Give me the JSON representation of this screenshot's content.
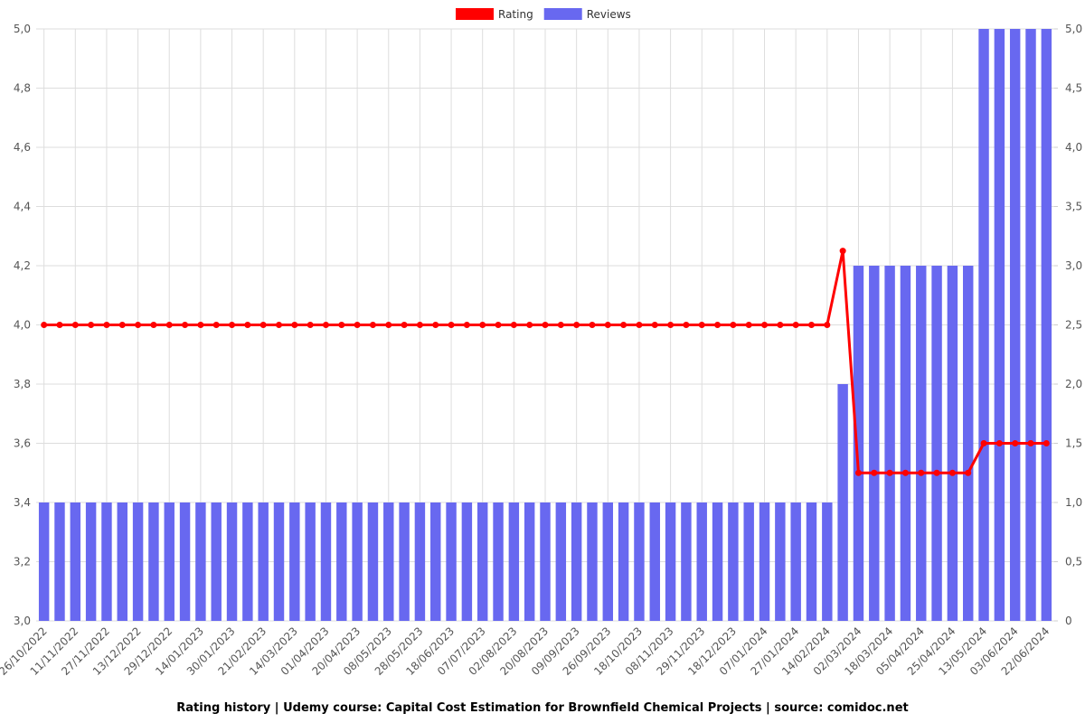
{
  "chart_data": {
    "type": "bar-line",
    "caption": "Rating history | Udemy course: Capital Cost Estimation for Brownfield Chemical Projects | source: comidoc.net",
    "categories": [
      "26/10/2022",
      null,
      "11/11/2022",
      null,
      "27/11/2022",
      null,
      "13/12/2022",
      null,
      "29/12/2022",
      null,
      "14/01/2023",
      null,
      "30/01/2023",
      null,
      "21/02/2023",
      null,
      "14/03/2023",
      null,
      "01/04/2023",
      null,
      "20/04/2023",
      null,
      "08/05/2023",
      null,
      "28/05/2023",
      null,
      "18/06/2023",
      null,
      "07/07/2023",
      null,
      "02/08/2023",
      null,
      "20/08/2023",
      null,
      "09/09/2023",
      null,
      "26/09/2023",
      null,
      "18/10/2023",
      null,
      "08/11/2023",
      null,
      "29/11/2023",
      null,
      "18/12/2023",
      null,
      "07/01/2024",
      null,
      "27/01/2024",
      null,
      "14/02/2024",
      null,
      "02/03/2024",
      null,
      "18/03/2024",
      null,
      "05/04/2024",
      null,
      "25/04/2024",
      null,
      "13/05/2024",
      null,
      "03/06/2024",
      null,
      "22/06/2024"
    ],
    "series": [
      {
        "name": "Rating",
        "type": "line",
        "axis": "y",
        "color": "#ff0000",
        "values": [
          4,
          4,
          4,
          4,
          4,
          4,
          4,
          4,
          4,
          4,
          4,
          4,
          4,
          4,
          4,
          4,
          4,
          4,
          4,
          4,
          4,
          4,
          4,
          4,
          4,
          4,
          4,
          4,
          4,
          4,
          4,
          4,
          4,
          4,
          4,
          4,
          4,
          4,
          4,
          4,
          4,
          4,
          4,
          4,
          4,
          4,
          4,
          4,
          4,
          4,
          4,
          4.25,
          3.5,
          3.5,
          3.5,
          3.5,
          3.5,
          3.5,
          3.5,
          3.5,
          3.6,
          3.6,
          3.6,
          3.6,
          3.6
        ]
      },
      {
        "name": "Reviews",
        "type": "bar",
        "axis": "y2",
        "color": "#6868f0",
        "values": [
          1,
          1,
          1,
          1,
          1,
          1,
          1,
          1,
          1,
          1,
          1,
          1,
          1,
          1,
          1,
          1,
          1,
          1,
          1,
          1,
          1,
          1,
          1,
          1,
          1,
          1,
          1,
          1,
          1,
          1,
          1,
          1,
          1,
          1,
          1,
          1,
          1,
          1,
          1,
          1,
          1,
          1,
          1,
          1,
          1,
          1,
          1,
          1,
          1,
          1,
          1,
          2,
          3,
          3,
          3,
          3,
          3,
          3,
          3,
          3,
          5,
          5,
          5,
          5,
          5
        ]
      }
    ],
    "ylim": [
      3,
      5
    ],
    "yticks": [
      {
        "value": 3,
        "label": "3,0"
      },
      {
        "value": 3.2,
        "label": "3,2"
      },
      {
        "value": 3.4,
        "label": "3,4"
      },
      {
        "value": 3.6,
        "label": "3,6"
      },
      {
        "value": 3.8,
        "label": "3,8"
      },
      {
        "value": 4,
        "label": "4,0"
      },
      {
        "value": 4.2,
        "label": "4,2"
      },
      {
        "value": 4.4,
        "label": "4,4"
      },
      {
        "value": 4.6,
        "label": "4,6"
      },
      {
        "value": 4.8,
        "label": "4,8"
      },
      {
        "value": 5,
        "label": "5,0"
      }
    ],
    "y2lim": [
      0,
      5
    ],
    "y2ticks": [
      0,
      {
        "value": 0.5,
        "label": "0,5"
      },
      {
        "value": 1,
        "label": "1,0"
      },
      {
        "value": 1.5,
        "label": "1,5"
      },
      {
        "value": 2,
        "label": "2,0"
      },
      {
        "value": 2.5,
        "label": "2,5"
      },
      {
        "value": 3,
        "label": "3,0"
      },
      {
        "value": 3.5,
        "label": "3,5"
      },
      {
        "value": 4,
        "label": "4,0"
      },
      {
        "value": 4.5,
        "label": "4,5"
      },
      {
        "value": 5,
        "label": "5,0"
      }
    ],
    "grid": true
  }
}
